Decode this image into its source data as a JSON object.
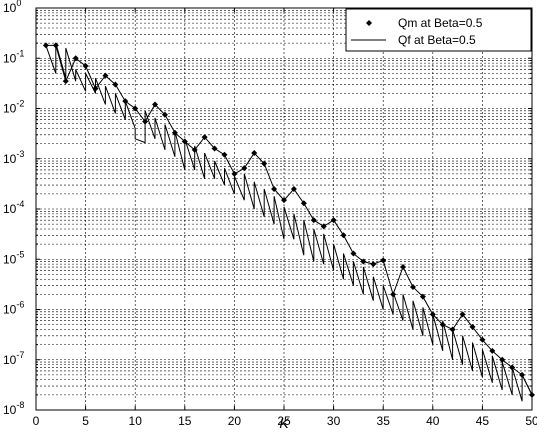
{
  "chart_data": {
    "type": "line",
    "title": "",
    "xlabel": "K",
    "ylabel": "",
    "xlim": [
      0,
      50
    ],
    "ylim": [
      1e-08,
      1
    ],
    "yscale": "log",
    "grid": true,
    "legend_position": "top-right",
    "x_ticks": [
      0,
      5,
      10,
      15,
      20,
      25,
      30,
      35,
      40,
      45,
      50
    ],
    "y_ticks": [
      {
        "base": "10",
        "exp": "0"
      },
      {
        "base": "10",
        "exp": "-1"
      },
      {
        "base": "10",
        "exp": "-2"
      },
      {
        "base": "10",
        "exp": "-3"
      },
      {
        "base": "10",
        "exp": "-4"
      },
      {
        "base": "10",
        "exp": "-5"
      },
      {
        "base": "10",
        "exp": "-6"
      },
      {
        "base": "10",
        "exp": "-7"
      },
      {
        "base": "10",
        "exp": "-8"
      }
    ],
    "series": [
      {
        "name": "Qm at Beta=0.5",
        "style": "line-with-diamond-markers",
        "color": "#000000",
        "x": [
          1,
          2,
          3,
          4,
          5,
          6,
          7,
          8,
          9,
          10,
          11,
          12,
          13,
          14,
          15,
          16,
          17,
          18,
          19,
          20,
          21,
          22,
          23,
          24,
          25,
          26,
          27,
          28,
          29,
          30,
          31,
          32,
          33,
          34,
          35,
          36,
          37,
          38,
          39,
          40,
          41,
          42,
          43,
          44,
          45,
          46,
          47,
          48,
          49,
          50
        ],
        "y": [
          0.18,
          0.18,
          0.035,
          0.1,
          0.07,
          0.025,
          0.045,
          0.03,
          0.014,
          0.01,
          0.0055,
          0.012,
          0.0075,
          0.0033,
          0.0022,
          0.0015,
          0.0027,
          0.0016,
          0.0012,
          0.0005,
          0.00065,
          0.0013,
          0.0008,
          0.00025,
          0.00015,
          0.00025,
          0.00013,
          6e-05,
          4.5e-05,
          6e-05,
          3e-05,
          1.3e-05,
          9e-06,
          8e-06,
          9.5e-06,
          2e-06,
          7e-06,
          2.8e-06,
          1.8e-06,
          8e-07,
          5e-07,
          4e-07,
          8e-07,
          4.5e-07,
          2.5e-07,
          1.5e-07,
          1e-07,
          7e-08,
          5e-08,
          2e-08
        ]
      },
      {
        "name": "Qf at Beta=0.5",
        "style": "line",
        "color": "#000000",
        "x": [
          1,
          2,
          2,
          3,
          3,
          4,
          4,
          5,
          5,
          6,
          6,
          7,
          7,
          8,
          8,
          9,
          9,
          10,
          10,
          11,
          11,
          12,
          12,
          13,
          13,
          14,
          14,
          15,
          15,
          16,
          16,
          17,
          17,
          18,
          18,
          19,
          19,
          20,
          20,
          21,
          21,
          22,
          22,
          23,
          23,
          24,
          24,
          25,
          25,
          26,
          26,
          27,
          27,
          28,
          28,
          29,
          29,
          30,
          30,
          31,
          31,
          32,
          32,
          33,
          33,
          34,
          34,
          35,
          35,
          36,
          36,
          37,
          37,
          38,
          38,
          39,
          39,
          40,
          40,
          41,
          41,
          42,
          42,
          43,
          43,
          44,
          44,
          45,
          45,
          46,
          46,
          47,
          47,
          48,
          48,
          49,
          49,
          50
        ],
        "y": [
          0.18,
          0.05,
          0.2,
          0.04,
          0.16,
          0.035,
          0.06,
          0.022,
          0.05,
          0.02,
          0.04,
          0.012,
          0.028,
          0.008,
          0.02,
          0.006,
          0.014,
          0.004,
          0.0025,
          0.0021,
          0.009,
          0.0025,
          0.0065,
          0.0015,
          0.0048,
          0.0011,
          0.0035,
          0.0006,
          0.0025,
          0.0006,
          0.0018,
          0.0004,
          0.0013,
          0.0004,
          0.0009,
          0.0003,
          0.00065,
          0.0002,
          0.00045,
          0.00015,
          0.0005,
          0.0001,
          0.00035,
          7e-05,
          0.00025,
          5e-05,
          0.00018,
          2.5e-05,
          0.00011,
          2.5e-05,
          8e-05,
          1.2e-05,
          6e-05,
          9e-06,
          4e-05,
          8e-06,
          3.2e-05,
          6e-06,
          2e-05,
          4e-06,
          1.3e-05,
          3e-06,
          9e-06,
          2e-06,
          7e-06,
          1.5e-06,
          4.5e-06,
          1e-06,
          3e-06,
          8e-07,
          2.2e-06,
          6e-07,
          2e-06,
          4e-07,
          1.5e-06,
          3e-07,
          1.1e-06,
          2e-07,
          8e-07,
          1.5e-07,
          6e-07,
          1e-07,
          4e-07,
          8e-08,
          3e-07,
          6e-08,
          2.2e-07,
          4.5e-08,
          1.6e-07,
          3.5e-08,
          1.2e-07,
          2.5e-08,
          9e-08,
          2e-08,
          7e-08,
          1.5e-08,
          5e-08,
          2e-08
        ]
      }
    ]
  }
}
